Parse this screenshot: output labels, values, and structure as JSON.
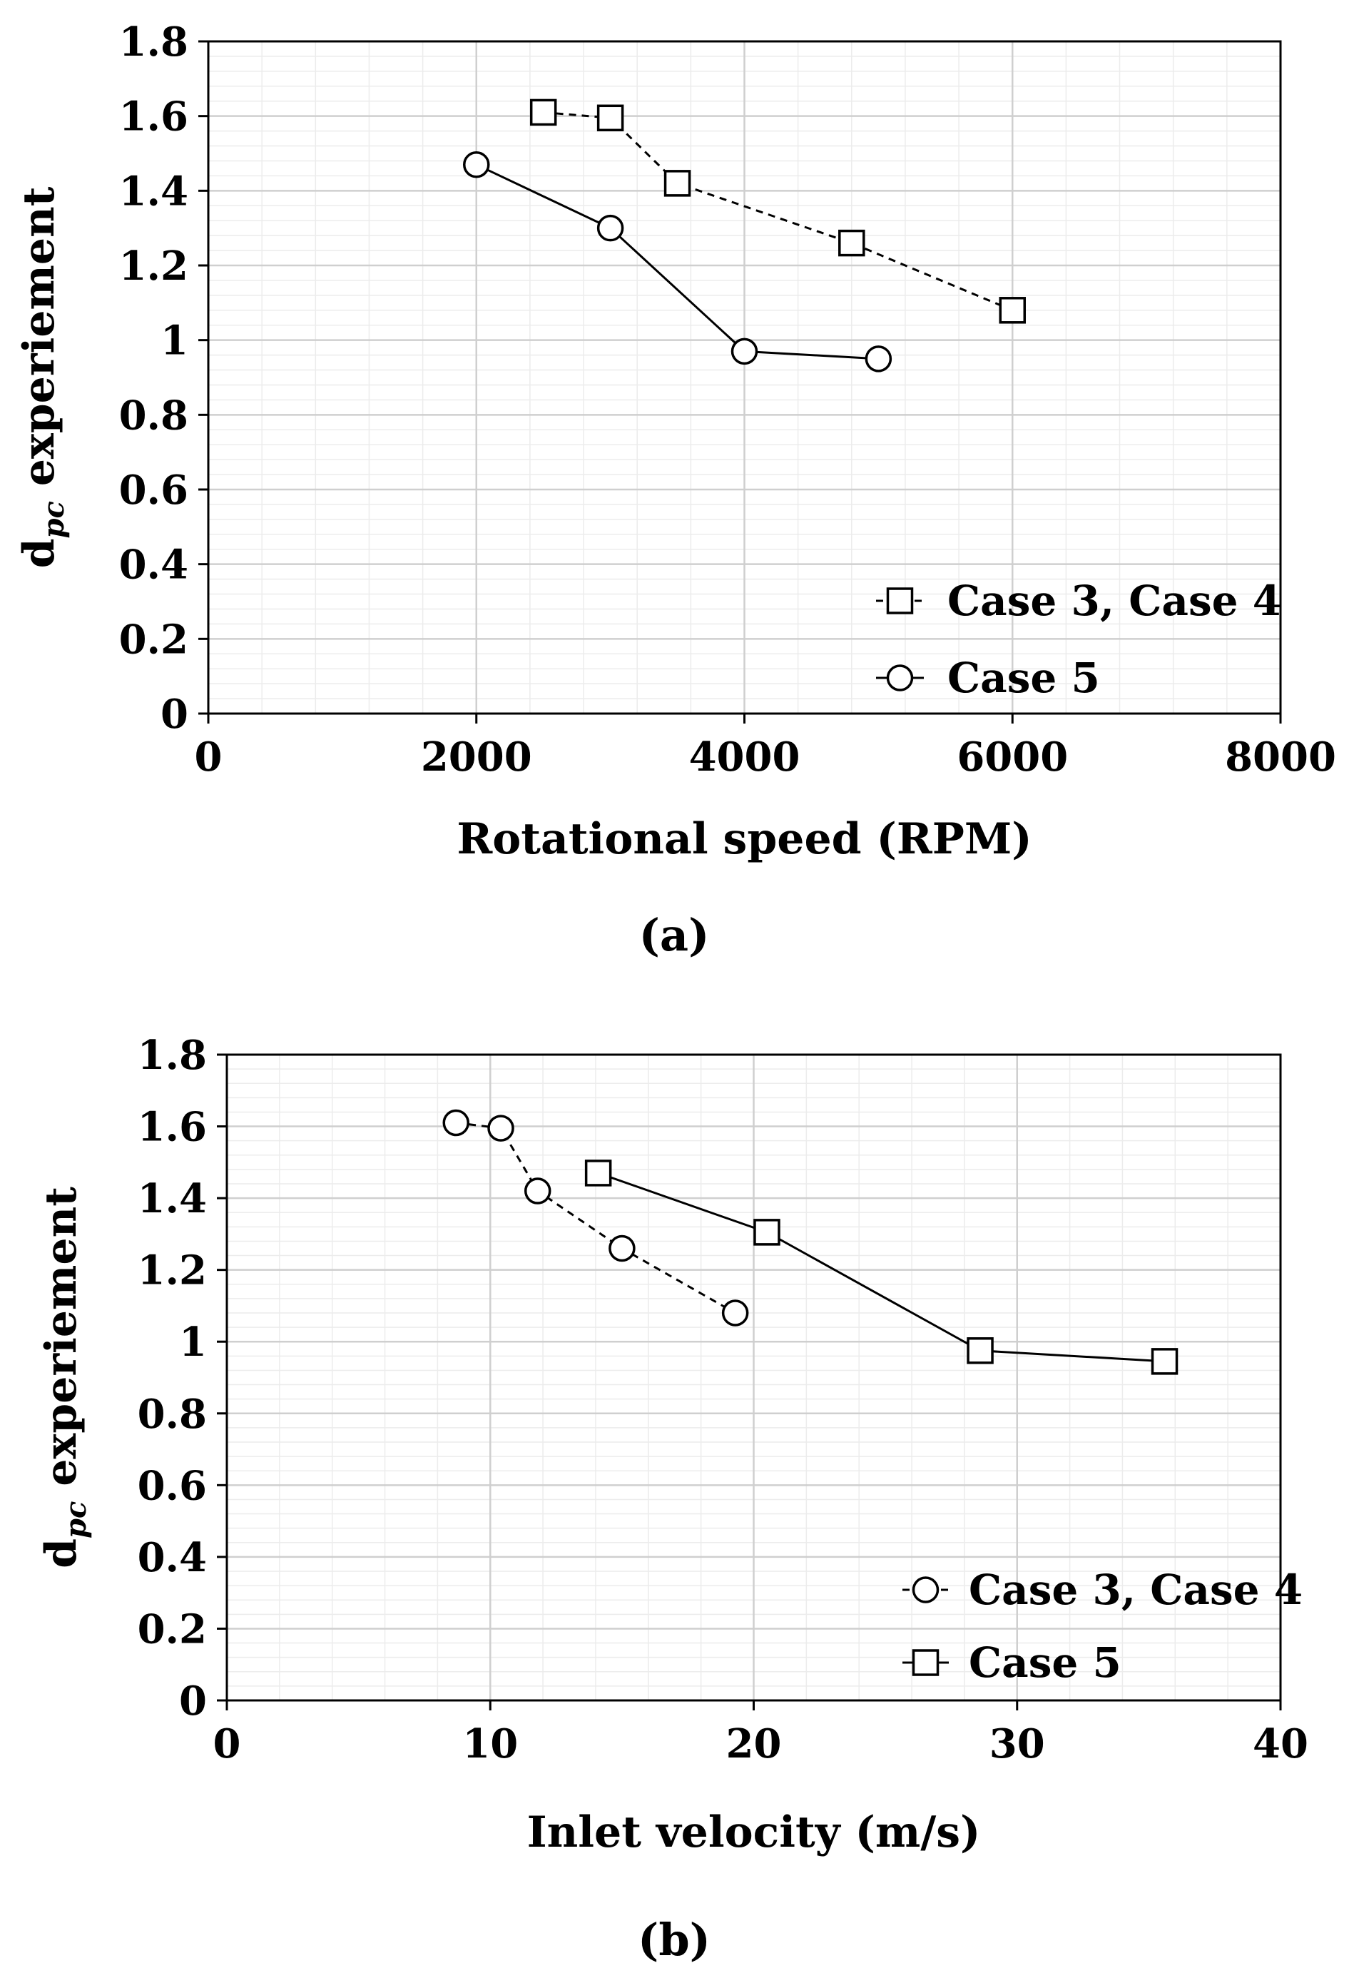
{
  "chart_data": [
    {
      "type": "line",
      "panel_label": "(a)",
      "xlabel": "Rotational speed (RPM)",
      "ylabel_main": "d",
      "ylabel_sub": "pc",
      "ylabel_rest": " experiement",
      "xlim": [
        0,
        8000
      ],
      "ylim": [
        0,
        1.8
      ],
      "xticks": [
        0,
        2000,
        4000,
        6000,
        8000
      ],
      "xtick_labels": [
        "0",
        "2000",
        "4000",
        "6000",
        "8000"
      ],
      "yticks": [
        0,
        0.2,
        0.4,
        0.6,
        0.8,
        1,
        1.2,
        1.4,
        1.6,
        1.8
      ],
      "ytick_labels": [
        "0",
        "0.2",
        "0.4",
        "0.6",
        "0.8",
        "1",
        "1.2",
        "1.4",
        "1.6",
        "1.8"
      ],
      "x_minor_step": 400,
      "y_minor_step": 0.04,
      "grid": true,
      "legend_position": "bottom-right",
      "series": [
        {
          "name": "Case 3, Case 4",
          "marker": "square",
          "line": "dashed",
          "x": [
            2500,
            3000,
            3500,
            4800,
            6000
          ],
          "y": [
            1.61,
            1.595,
            1.42,
            1.26,
            1.08
          ]
        },
        {
          "name": "Case 5",
          "marker": "circle",
          "line": "solid",
          "x": [
            2000,
            3000,
            4000,
            5000
          ],
          "y": [
            1.47,
            1.3,
            0.97,
            0.95
          ]
        }
      ]
    },
    {
      "type": "line",
      "panel_label": "(b)",
      "xlabel": "Inlet velocity (m/s)",
      "ylabel_main": "d",
      "ylabel_sub": "pc",
      "ylabel_rest": " experiement",
      "xlim": [
        0,
        40
      ],
      "ylim": [
        0,
        1.8
      ],
      "xticks": [
        0,
        10,
        20,
        30,
        40
      ],
      "xtick_labels": [
        "0",
        "10",
        "20",
        "30",
        "40"
      ],
      "yticks": [
        0,
        0.2,
        0.4,
        0.6,
        0.8,
        1,
        1.2,
        1.4,
        1.6,
        1.8
      ],
      "ytick_labels": [
        "0",
        "0.2",
        "0.4",
        "0.6",
        "0.8",
        "1",
        "1.2",
        "1.4",
        "1.6",
        "1.8"
      ],
      "x_minor_step": 2,
      "y_minor_step": 0.04,
      "grid": true,
      "legend_position": "bottom-right",
      "series": [
        {
          "name": "Case 3, Case 4",
          "marker": "circle",
          "line": "dashed",
          "x": [
            8.7,
            10.4,
            11.8,
            15.0,
            19.3
          ],
          "y": [
            1.61,
            1.595,
            1.42,
            1.26,
            1.08
          ]
        },
        {
          "name": "Case 5",
          "marker": "square",
          "line": "solid",
          "x": [
            14.1,
            20.5,
            28.6,
            35.6
          ],
          "y": [
            1.47,
            1.305,
            0.975,
            0.945
          ]
        }
      ]
    }
  ]
}
